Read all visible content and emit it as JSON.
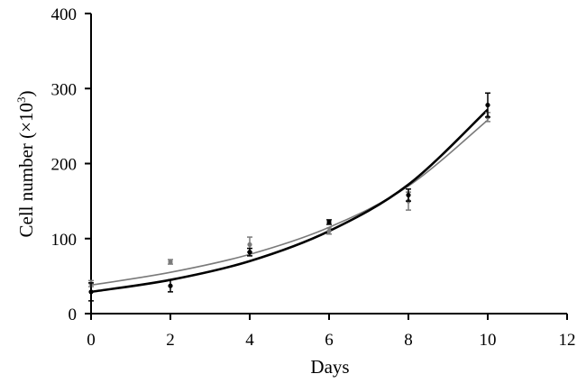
{
  "chart_data": {
    "type": "scatter",
    "xlabel": "Days",
    "ylabel_main": "Cell number (×10",
    "ylabel_sup": "3",
    "ylabel_close": ")",
    "xlim": [
      0,
      12
    ],
    "ylim": [
      0,
      400
    ],
    "x_ticks": [
      0,
      2,
      4,
      6,
      8,
      10,
      12
    ],
    "x_tick_labels": [
      "0",
      "2",
      "4",
      "6",
      "8",
      "10",
      "12"
    ],
    "y_ticks": [
      0,
      100,
      200,
      300,
      400
    ],
    "y_tick_labels": [
      "0",
      "100",
      "200",
      "300",
      "400"
    ],
    "grid": false,
    "series": [
      {
        "color": "#000000",
        "points": [
          {
            "x": 0,
            "y": 29,
            "err": 12
          },
          {
            "x": 2,
            "y": 37,
            "err": 8
          },
          {
            "x": 4,
            "y": 82,
            "err": 5
          },
          {
            "x": 6,
            "y": 122,
            "err": 3
          },
          {
            "x": 8,
            "y": 158,
            "err": 8
          },
          {
            "x": 10,
            "y": 278,
            "err": 16
          }
        ],
        "fit": [
          {
            "x": 0,
            "y": 29
          },
          {
            "x": 2,
            "y": 45
          },
          {
            "x": 4,
            "y": 70
          },
          {
            "x": 6,
            "y": 110
          },
          {
            "x": 8,
            "y": 172
          },
          {
            "x": 10,
            "y": 272
          }
        ]
      },
      {
        "color": "#7a7a7a",
        "points": [
          {
            "x": 0,
            "y": 40,
            "err": 4
          },
          {
            "x": 2,
            "y": 69,
            "err": 3
          },
          {
            "x": 4,
            "y": 92,
            "err": 10
          },
          {
            "x": 6,
            "y": 110,
            "err": 4
          },
          {
            "x": 8,
            "y": 150,
            "err": 12
          },
          {
            "x": 10,
            "y": 262,
            "err": 6
          }
        ],
        "fit": [
          {
            "x": 0,
            "y": 38
          },
          {
            "x": 2,
            "y": 55
          },
          {
            "x": 4,
            "y": 79
          },
          {
            "x": 6,
            "y": 115
          },
          {
            "x": 8,
            "y": 170
          },
          {
            "x": 10,
            "y": 258
          }
        ]
      }
    ]
  }
}
